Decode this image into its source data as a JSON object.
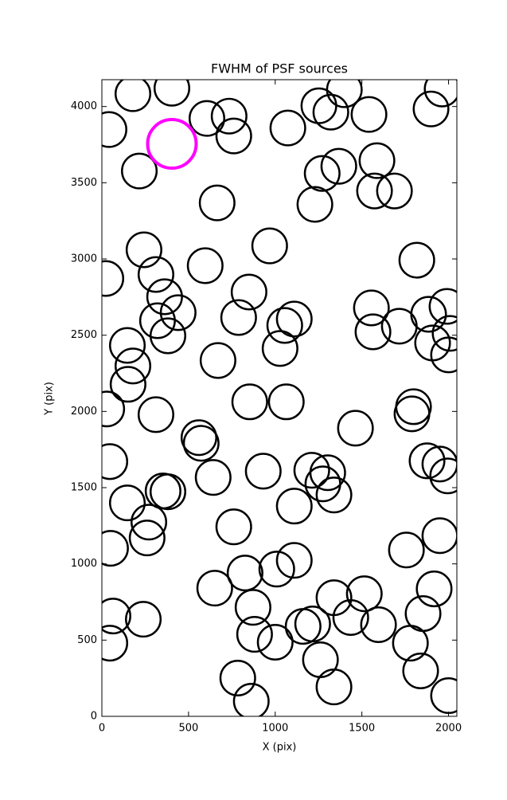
{
  "chart_data": {
    "type": "scatter",
    "title": "FWHM of PSF sources",
    "x_label": "X (pix)",
    "y_label": "Y (pix)",
    "xlim": [
      0,
      2048
    ],
    "ylim": [
      0,
      4176
    ],
    "xticks": [
      0,
      500,
      1000,
      1500,
      2000
    ],
    "yticks": [
      0,
      500,
      1000,
      1500,
      2000,
      2500,
      3000,
      3500,
      4000
    ],
    "series": [
      {
        "color": "#000000",
        "marker": "open-circle",
        "marker_radius": 100,
        "x": [
          179,
          404,
          41,
          606,
          734,
          761,
          1073,
          1252,
          1399,
          1321,
          1541,
          1963,
          1899,
          216,
          1271,
          1367,
          1587,
          1573,
          1688,
          1229,
          665,
          243,
          968,
          596,
          1817,
          23,
          312,
          362,
          849,
          440,
          321,
          381,
          789,
          1110,
          1055,
          1028,
          1555,
          1564,
          1716,
          1885,
          1991,
          2009,
          1908,
          2000,
          147,
          179,
          151,
          670,
          28,
          853,
          1064,
          312,
          1463,
          1798,
          1789,
          560,
          573,
          46,
          642,
          931,
          1211,
          1303,
          1275,
          1339,
          1876,
          1950,
          1995,
          147,
          353,
          381,
          1110,
          271,
          261,
          761,
          50,
          1110,
          1009,
          826,
          1950,
          1757,
          651,
          872,
          1339,
          1514,
          1917,
          1853,
          64,
          239,
          881,
          1000,
          1161,
          1216,
          1436,
          1596,
          1780,
          46,
          1261,
          1839,
          784,
          862,
          1339,
          2000
        ],
        "values": [
          4084,
          4120,
          3849,
          3922,
          3937,
          3807,
          3859,
          4005,
          4110,
          3963,
          3948,
          4115,
          3984,
          3577,
          3561,
          3608,
          3645,
          3446,
          3446,
          3358,
          3368,
          3060,
          3086,
          2956,
          2992,
          2872,
          2898,
          2752,
          2783,
          2648,
          2595,
          2496,
          2616,
          2606,
          2564,
          2413,
          2679,
          2522,
          2559,
          2637,
          2689,
          2512,
          2449,
          2371,
          2433,
          2298,
          2178,
          2334,
          2016,
          2063,
          2063,
          1979,
          1890,
          2031,
          1984,
          1828,
          1791,
          1671,
          1567,
          1608,
          1614,
          1598,
          1525,
          1452,
          1676,
          1655,
          1577,
          1400,
          1478,
          1473,
          1379,
          1274,
          1170,
          1243,
          1102,
          1023,
          966,
          940,
          1185,
          1091,
          841,
          715,
          778,
          804,
          836,
          674,
          658,
          637,
          538,
          486,
          590,
          606,
          648,
          601,
          480,
          480,
          371,
          298,
          251,
          99,
          193,
          136
        ]
      },
      {
        "color": "#ff00ff",
        "marker": "open-circle",
        "marker_radius": 140,
        "x": [
          404
        ],
        "values": [
          3755
        ]
      }
    ]
  }
}
